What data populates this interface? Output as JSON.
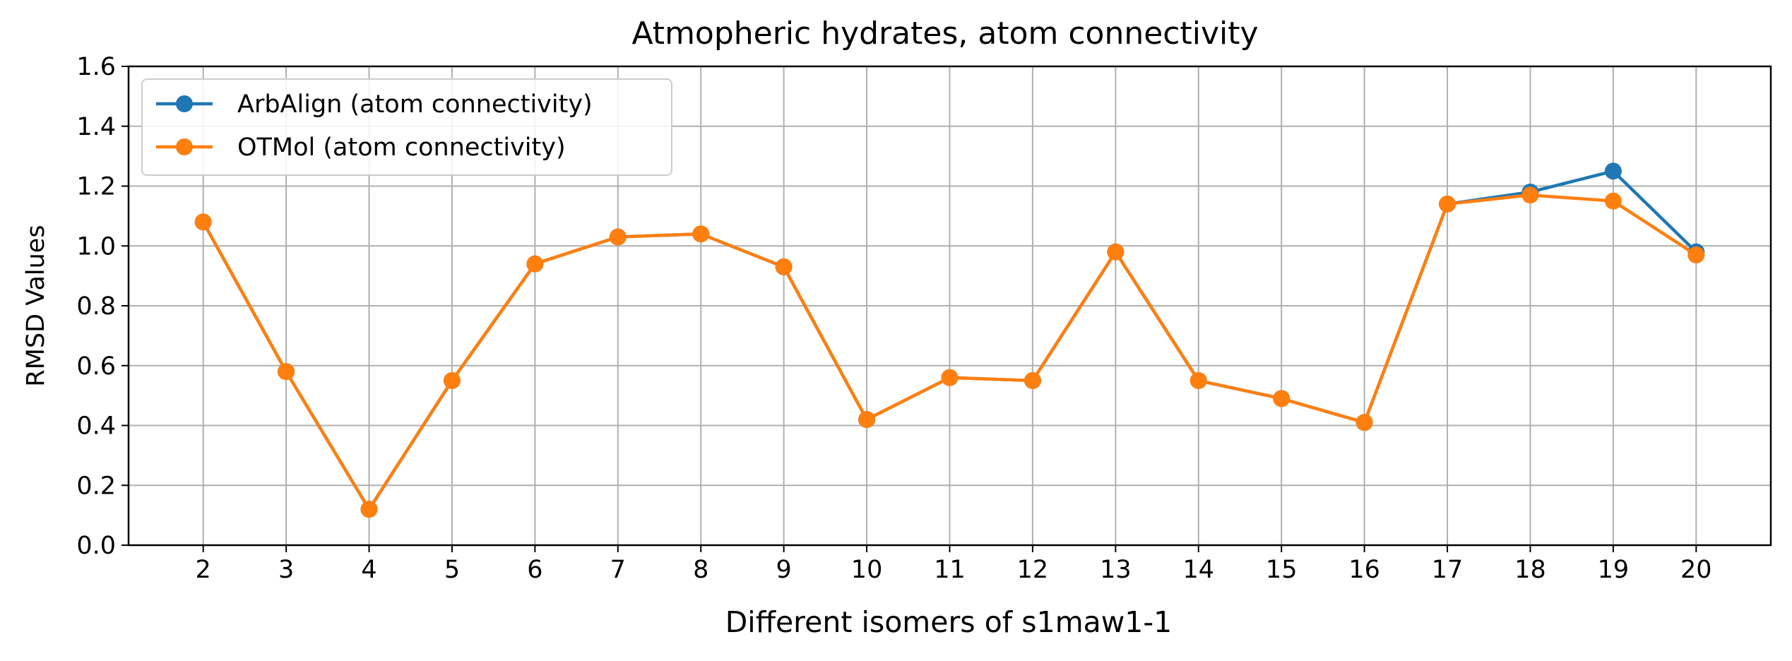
{
  "chart_data": {
    "type": "line",
    "title": "Atmopheric hydrates, atom connectivity",
    "xlabel": "Different isomers of s1maw1-1",
    "ylabel": "RMSD Values",
    "x": [
      2,
      3,
      4,
      5,
      6,
      7,
      8,
      9,
      10,
      11,
      12,
      13,
      14,
      15,
      16,
      17,
      18,
      19,
      20
    ],
    "xlim": [
      1.1,
      20.9
    ],
    "ylim": [
      0,
      1.6
    ],
    "yticks": [
      "0.0",
      "0.2",
      "0.4",
      "0.6",
      "0.8",
      "1.0",
      "1.2",
      "1.4",
      "1.6"
    ],
    "grid": true,
    "legend_position": "top-left",
    "series": [
      {
        "name": "ArbAlign (atom connectivity)",
        "color": "#1f77b4",
        "values": [
          1.08,
          0.58,
          0.12,
          0.55,
          0.94,
          1.03,
          1.04,
          0.93,
          0.42,
          0.56,
          0.55,
          0.98,
          0.55,
          0.49,
          0.41,
          1.14,
          1.18,
          1.25,
          0.98
        ]
      },
      {
        "name": "OTMol (atom connectivity)",
        "color": "#ff7f0e",
        "values": [
          1.08,
          0.58,
          0.12,
          0.55,
          0.94,
          1.03,
          1.04,
          0.93,
          0.42,
          0.56,
          0.55,
          0.98,
          0.55,
          0.49,
          0.41,
          1.14,
          1.17,
          1.15,
          0.97
        ]
      }
    ]
  }
}
